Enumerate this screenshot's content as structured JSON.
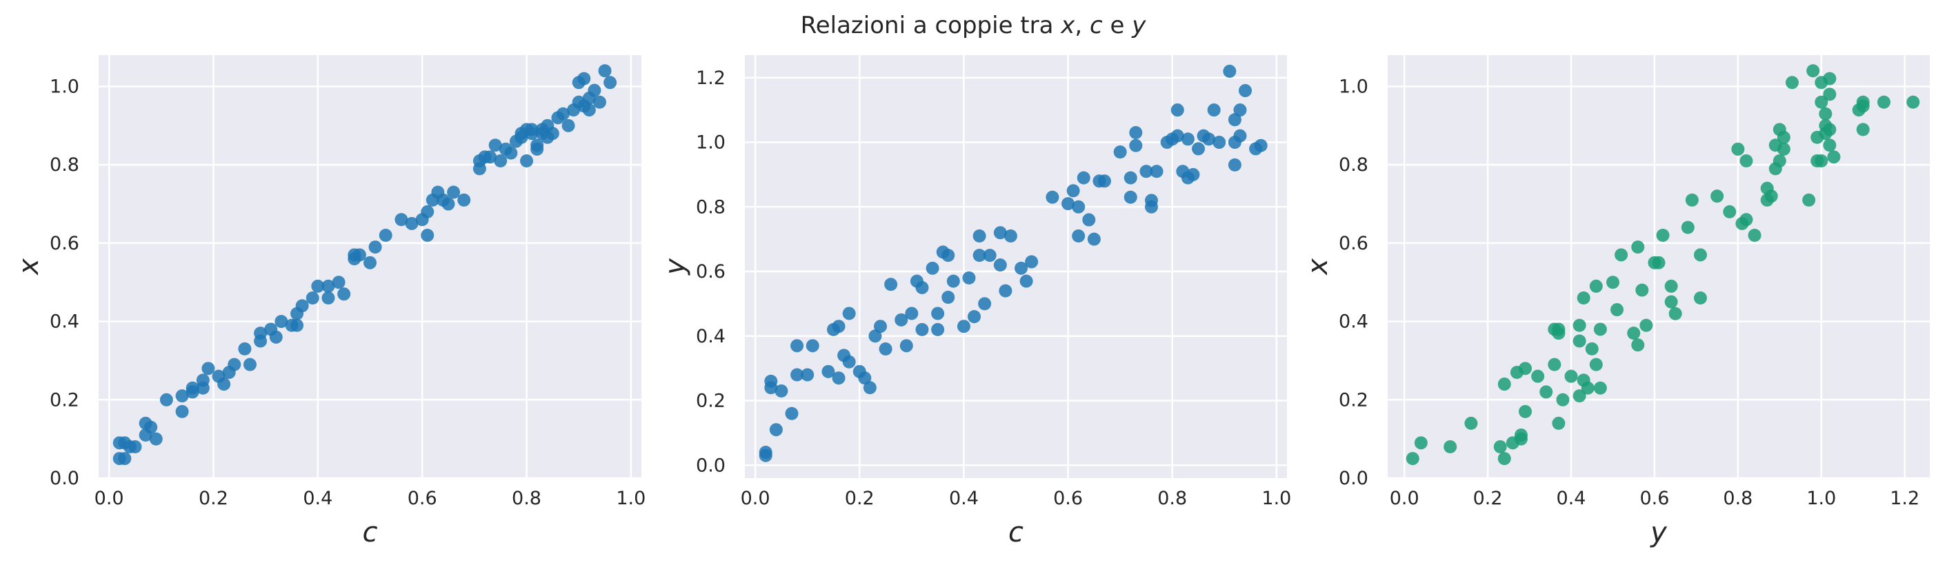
{
  "title": {
    "prefix": "Relazioni a coppie tra ",
    "v1": "x",
    "sep1": ", ",
    "v2": "c",
    "sep2": " e ",
    "v3": "y"
  },
  "colors": {
    "axes_bg": "#eaeaf2",
    "grid": "#ffffff",
    "blue": "#1f77b4",
    "green": "#1a9e77"
  },
  "chart_data": [
    {
      "type": "scatter",
      "xlabel": "c",
      "ylabel": "x",
      "xlim": [
        -0.02,
        1.02
      ],
      "ylim": [
        0.0,
        1.08
      ],
      "xticks": [
        "0.0",
        "0.2",
        "0.4",
        "0.6",
        "0.8",
        "1.0"
      ],
      "yticks": [
        "0.0",
        "0.2",
        "0.4",
        "0.6",
        "0.8",
        "1.0"
      ],
      "grid": true,
      "color": "#1f77b4",
      "points": [
        [
          0.02,
          0.05
        ],
        [
          0.02,
          0.09
        ],
        [
          0.03,
          0.05
        ],
        [
          0.03,
          0.09
        ],
        [
          0.04,
          0.08
        ],
        [
          0.05,
          0.08
        ],
        [
          0.07,
          0.11
        ],
        [
          0.07,
          0.14
        ],
        [
          0.08,
          0.13
        ],
        [
          0.09,
          0.1
        ],
        [
          0.11,
          0.2
        ],
        [
          0.14,
          0.17
        ],
        [
          0.14,
          0.21
        ],
        [
          0.16,
          0.23
        ],
        [
          0.16,
          0.22
        ],
        [
          0.18,
          0.25
        ],
        [
          0.18,
          0.23
        ],
        [
          0.19,
          0.28
        ],
        [
          0.21,
          0.26
        ],
        [
          0.22,
          0.24
        ],
        [
          0.23,
          0.27
        ],
        [
          0.24,
          0.29
        ],
        [
          0.26,
          0.33
        ],
        [
          0.27,
          0.29
        ],
        [
          0.29,
          0.35
        ],
        [
          0.29,
          0.37
        ],
        [
          0.31,
          0.38
        ],
        [
          0.32,
          0.36
        ],
        [
          0.33,
          0.4
        ],
        [
          0.35,
          0.39
        ],
        [
          0.36,
          0.39
        ],
        [
          0.36,
          0.42
        ],
        [
          0.37,
          0.44
        ],
        [
          0.39,
          0.46
        ],
        [
          0.4,
          0.49
        ],
        [
          0.42,
          0.46
        ],
        [
          0.42,
          0.49
        ],
        [
          0.44,
          0.5
        ],
        [
          0.45,
          0.47
        ],
        [
          0.47,
          0.56
        ],
        [
          0.47,
          0.57
        ],
        [
          0.48,
          0.57
        ],
        [
          0.5,
          0.55
        ],
        [
          0.51,
          0.59
        ],
        [
          0.53,
          0.62
        ],
        [
          0.56,
          0.66
        ],
        [
          0.58,
          0.65
        ],
        [
          0.6,
          0.66
        ],
        [
          0.61,
          0.68
        ],
        [
          0.61,
          0.62
        ],
        [
          0.62,
          0.71
        ],
        [
          0.63,
          0.73
        ],
        [
          0.64,
          0.71
        ],
        [
          0.65,
          0.7
        ],
        [
          0.66,
          0.73
        ],
        [
          0.68,
          0.71
        ],
        [
          0.71,
          0.79
        ],
        [
          0.71,
          0.81
        ],
        [
          0.72,
          0.82
        ],
        [
          0.73,
          0.82
        ],
        [
          0.74,
          0.85
        ],
        [
          0.75,
          0.81
        ],
        [
          0.76,
          0.84
        ],
        [
          0.77,
          0.83
        ],
        [
          0.78,
          0.86
        ],
        [
          0.79,
          0.87
        ],
        [
          0.79,
          0.88
        ],
        [
          0.8,
          0.89
        ],
        [
          0.8,
          0.81
        ],
        [
          0.81,
          0.89
        ],
        [
          0.81,
          0.88
        ],
        [
          0.82,
          0.84
        ],
        [
          0.82,
          0.85
        ],
        [
          0.83,
          0.89
        ],
        [
          0.83,
          0.88
        ],
        [
          0.84,
          0.87
        ],
        [
          0.84,
          0.9
        ],
        [
          0.85,
          0.88
        ],
        [
          0.86,
          0.92
        ],
        [
          0.87,
          0.93
        ],
        [
          0.88,
          0.9
        ],
        [
          0.89,
          0.94
        ],
        [
          0.9,
          0.96
        ],
        [
          0.9,
          1.01
        ],
        [
          0.91,
          1.02
        ],
        [
          0.91,
          0.95
        ],
        [
          0.92,
          0.97
        ],
        [
          0.92,
          0.94
        ],
        [
          0.93,
          0.99
        ],
        [
          0.94,
          0.96
        ],
        [
          0.95,
          1.04
        ],
        [
          0.96,
          1.01
        ]
      ]
    },
    {
      "type": "scatter",
      "xlabel": "c",
      "ylabel": "y",
      "xlim": [
        -0.02,
        1.02
      ],
      "ylim": [
        -0.04,
        1.27
      ],
      "xticks": [
        "0.0",
        "0.2",
        "0.4",
        "0.6",
        "0.8",
        "1.0"
      ],
      "yticks": [
        "0.0",
        "0.2",
        "0.4",
        "0.6",
        "0.8",
        "1.0",
        "1.2"
      ],
      "grid": true,
      "color": "#1f77b4",
      "points": [
        [
          0.02,
          0.03
        ],
        [
          0.02,
          0.04
        ],
        [
          0.03,
          0.24
        ],
        [
          0.03,
          0.26
        ],
        [
          0.04,
          0.11
        ],
        [
          0.05,
          0.23
        ],
        [
          0.07,
          0.16
        ],
        [
          0.08,
          0.28
        ],
        [
          0.08,
          0.37
        ],
        [
          0.1,
          0.28
        ],
        [
          0.11,
          0.37
        ],
        [
          0.14,
          0.29
        ],
        [
          0.15,
          0.42
        ],
        [
          0.16,
          0.27
        ],
        [
          0.16,
          0.43
        ],
        [
          0.17,
          0.34
        ],
        [
          0.18,
          0.47
        ],
        [
          0.18,
          0.32
        ],
        [
          0.2,
          0.29
        ],
        [
          0.21,
          0.27
        ],
        [
          0.22,
          0.24
        ],
        [
          0.23,
          0.4
        ],
        [
          0.24,
          0.43
        ],
        [
          0.25,
          0.36
        ],
        [
          0.26,
          0.56
        ],
        [
          0.28,
          0.45
        ],
        [
          0.29,
          0.37
        ],
        [
          0.3,
          0.47
        ],
        [
          0.31,
          0.57
        ],
        [
          0.32,
          0.42
        ],
        [
          0.32,
          0.55
        ],
        [
          0.34,
          0.61
        ],
        [
          0.35,
          0.42
        ],
        [
          0.35,
          0.47
        ],
        [
          0.36,
          0.66
        ],
        [
          0.37,
          0.65
        ],
        [
          0.37,
          0.52
        ],
        [
          0.38,
          0.57
        ],
        [
          0.4,
          0.43
        ],
        [
          0.41,
          0.58
        ],
        [
          0.42,
          0.46
        ],
        [
          0.43,
          0.65
        ],
        [
          0.43,
          0.71
        ],
        [
          0.44,
          0.5
        ],
        [
          0.45,
          0.65
        ],
        [
          0.47,
          0.62
        ],
        [
          0.47,
          0.72
        ],
        [
          0.48,
          0.54
        ],
        [
          0.49,
          0.71
        ],
        [
          0.51,
          0.61
        ],
        [
          0.52,
          0.57
        ],
        [
          0.53,
          0.63
        ],
        [
          0.57,
          0.83
        ],
        [
          0.6,
          0.81
        ],
        [
          0.61,
          0.85
        ],
        [
          0.62,
          0.71
        ],
        [
          0.62,
          0.8
        ],
        [
          0.63,
          0.89
        ],
        [
          0.64,
          0.76
        ],
        [
          0.65,
          0.7
        ],
        [
          0.66,
          0.88
        ],
        [
          0.67,
          0.88
        ],
        [
          0.7,
          0.97
        ],
        [
          0.72,
          0.89
        ],
        [
          0.72,
          0.83
        ],
        [
          0.73,
          1.03
        ],
        [
          0.73,
          0.99
        ],
        [
          0.75,
          0.91
        ],
        [
          0.76,
          0.8
        ],
        [
          0.76,
          0.82
        ],
        [
          0.77,
          0.91
        ],
        [
          0.79,
          1.0
        ],
        [
          0.8,
          1.01
        ],
        [
          0.81,
          1.1
        ],
        [
          0.81,
          1.02
        ],
        [
          0.82,
          0.91
        ],
        [
          0.83,
          0.89
        ],
        [
          0.83,
          1.01
        ],
        [
          0.84,
          0.9
        ],
        [
          0.85,
          0.98
        ],
        [
          0.86,
          1.02
        ],
        [
          0.87,
          1.01
        ],
        [
          0.88,
          1.1
        ],
        [
          0.89,
          1.0
        ],
        [
          0.91,
          1.22
        ],
        [
          0.92,
          0.93
        ],
        [
          0.92,
          1.07
        ],
        [
          0.92,
          1.0
        ],
        [
          0.93,
          1.02
        ],
        [
          0.93,
          1.1
        ],
        [
          0.94,
          1.16
        ],
        [
          0.96,
          0.98
        ],
        [
          0.97,
          0.99
        ]
      ]
    },
    {
      "type": "scatter",
      "xlabel": "y",
      "ylabel": "x",
      "xlim": [
        -0.04,
        1.26
      ],
      "ylim": [
        0.0,
        1.08
      ],
      "xticks": [
        "0.0",
        "0.2",
        "0.4",
        "0.6",
        "0.8",
        "1.0",
        "1.2"
      ],
      "yticks": [
        "0.0",
        "0.2",
        "0.4",
        "0.6",
        "0.8",
        "1.0"
      ],
      "grid": true,
      "color": "#1a9e77",
      "points": [
        [
          0.02,
          0.05
        ],
        [
          0.04,
          0.09
        ],
        [
          0.11,
          0.08
        ],
        [
          0.16,
          0.14
        ],
        [
          0.23,
          0.08
        ],
        [
          0.24,
          0.05
        ],
        [
          0.24,
          0.24
        ],
        [
          0.26,
          0.09
        ],
        [
          0.27,
          0.27
        ],
        [
          0.28,
          0.1
        ],
        [
          0.28,
          0.11
        ],
        [
          0.29,
          0.28
        ],
        [
          0.29,
          0.17
        ],
        [
          0.32,
          0.26
        ],
        [
          0.34,
          0.22
        ],
        [
          0.36,
          0.29
        ],
        [
          0.36,
          0.38
        ],
        [
          0.37,
          0.14
        ],
        [
          0.37,
          0.37
        ],
        [
          0.37,
          0.38
        ],
        [
          0.38,
          0.2
        ],
        [
          0.4,
          0.26
        ],
        [
          0.42,
          0.21
        ],
        [
          0.42,
          0.35
        ],
        [
          0.42,
          0.39
        ],
        [
          0.43,
          0.46
        ],
        [
          0.43,
          0.25
        ],
        [
          0.44,
          0.23
        ],
        [
          0.45,
          0.33
        ],
        [
          0.46,
          0.29
        ],
        [
          0.46,
          0.49
        ],
        [
          0.47,
          0.23
        ],
        [
          0.47,
          0.38
        ],
        [
          0.5,
          0.5
        ],
        [
          0.51,
          0.43
        ],
        [
          0.52,
          0.57
        ],
        [
          0.55,
          0.37
        ],
        [
          0.56,
          0.34
        ],
        [
          0.56,
          0.59
        ],
        [
          0.57,
          0.48
        ],
        [
          0.58,
          0.39
        ],
        [
          0.6,
          0.55
        ],
        [
          0.61,
          0.55
        ],
        [
          0.62,
          0.62
        ],
        [
          0.64,
          0.45
        ],
        [
          0.64,
          0.49
        ],
        [
          0.65,
          0.42
        ],
        [
          0.68,
          0.64
        ],
        [
          0.69,
          0.71
        ],
        [
          0.71,
          0.46
        ],
        [
          0.71,
          0.57
        ],
        [
          0.75,
          0.72
        ],
        [
          0.78,
          0.68
        ],
        [
          0.8,
          0.84
        ],
        [
          0.81,
          0.65
        ],
        [
          0.82,
          0.81
        ],
        [
          0.82,
          0.66
        ],
        [
          0.84,
          0.62
        ],
        [
          0.87,
          0.71
        ],
        [
          0.87,
          0.74
        ],
        [
          0.88,
          0.72
        ],
        [
          0.89,
          0.79
        ],
        [
          0.89,
          0.85
        ],
        [
          0.9,
          0.89
        ],
        [
          0.9,
          0.81
        ],
        [
          0.91,
          0.84
        ],
        [
          0.91,
          0.87
        ],
        [
          0.93,
          1.01
        ],
        [
          0.97,
          0.71
        ],
        [
          0.98,
          1.04
        ],
        [
          0.99,
          0.87
        ],
        [
          0.99,
          0.81
        ],
        [
          1.0,
          0.96
        ],
        [
          1.0,
          0.81
        ],
        [
          1.0,
          1.01
        ],
        [
          1.01,
          0.9
        ],
        [
          1.01,
          0.88
        ],
        [
          1.01,
          0.93
        ],
        [
          1.02,
          0.85
        ],
        [
          1.02,
          0.89
        ],
        [
          1.02,
          0.98
        ],
        [
          1.02,
          1.02
        ],
        [
          1.03,
          0.82
        ],
        [
          1.09,
          0.94
        ],
        [
          1.1,
          0.89
        ],
        [
          1.1,
          0.95
        ],
        [
          1.1,
          0.96
        ],
        [
          1.15,
          0.96
        ],
        [
          1.22,
          0.96
        ]
      ]
    }
  ]
}
